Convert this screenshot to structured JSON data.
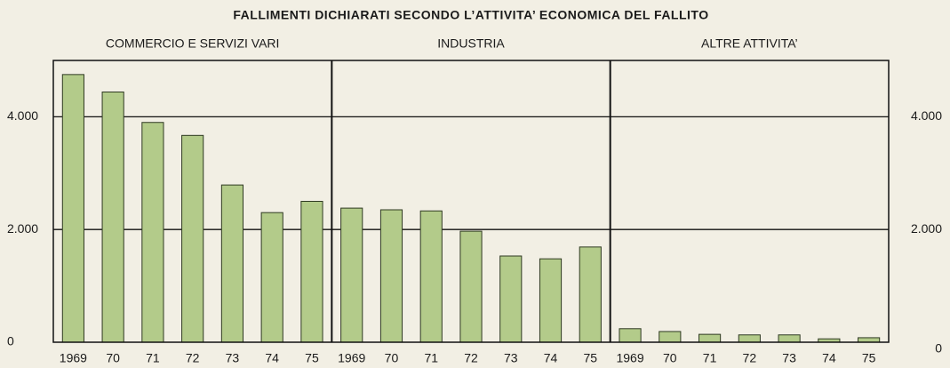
{
  "chart_data": {
    "type": "bar",
    "title": "FALLIMENTI DICHIARATI SECONDO L’ATTIVITA’ ECONOMICA DEL FALLITO",
    "color": "#b3cb8a",
    "ylim": [
      0,
      5000
    ],
    "yticks": [
      0,
      {
        "value": 2000,
        "label": "2.000"
      },
      {
        "value": 4000,
        "label": "4.000"
      }
    ],
    "grid": true,
    "panels": [
      {
        "title": "COMMERCIO E SERVIZI VARI",
        "categories": [
          "1969",
          "70",
          "71",
          "72",
          "73",
          "74",
          "75"
        ],
        "values": [
          4750,
          4440,
          3900,
          3670,
          2790,
          2300,
          2500
        ]
      },
      {
        "title": "INDUSTRIA",
        "categories": [
          "1969",
          "70",
          "71",
          "72",
          "73",
          "74",
          "75"
        ],
        "values": [
          2380,
          2350,
          2330,
          1970,
          1530,
          1480,
          1690
        ]
      },
      {
        "title": "ALTRE ATTIVITA’",
        "categories": [
          "1969",
          "70",
          "71",
          "72",
          "73",
          "74",
          "75"
        ],
        "values": [
          240,
          190,
          140,
          130,
          130,
          60,
          80
        ]
      }
    ]
  }
}
